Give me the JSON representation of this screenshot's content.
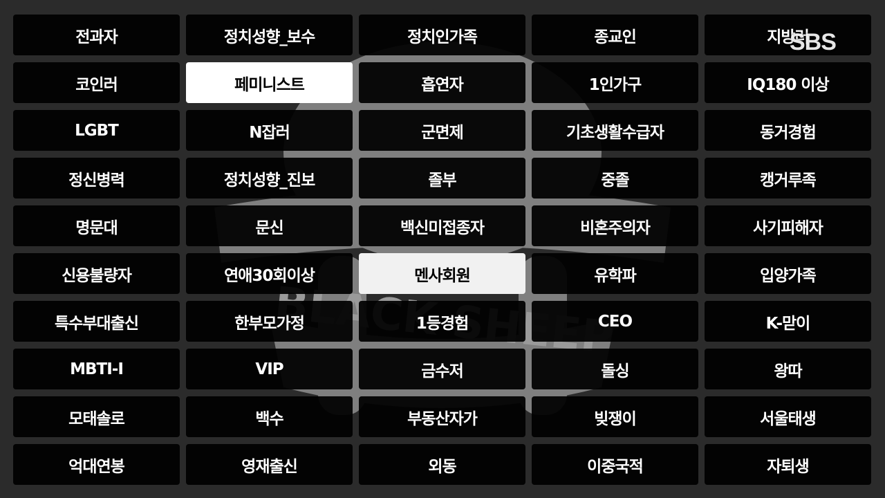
{
  "watermark": {
    "text": "BLACK SHEEP"
  },
  "broadcaster_logo": "SBS",
  "grid": {
    "items": [
      {
        "label": "전과자",
        "selected": false
      },
      {
        "label": "정치성향_보수",
        "selected": false
      },
      {
        "label": "정치인가족",
        "selected": false
      },
      {
        "label": "종교인",
        "selected": false
      },
      {
        "label": "지방러",
        "selected": false
      },
      {
        "label": "코인러",
        "selected": false
      },
      {
        "label": "페미니스트",
        "selected": true
      },
      {
        "label": "흡연자",
        "selected": false
      },
      {
        "label": "1인가구",
        "selected": false
      },
      {
        "label": "IQ180 이상",
        "selected": false
      },
      {
        "label": "LGBT",
        "selected": false
      },
      {
        "label": "N잡러",
        "selected": false
      },
      {
        "label": "군면제",
        "selected": false
      },
      {
        "label": "기초생활수급자",
        "selected": false
      },
      {
        "label": "동거경험",
        "selected": false
      },
      {
        "label": "정신병력",
        "selected": false
      },
      {
        "label": "정치성향_진보",
        "selected": false
      },
      {
        "label": "졸부",
        "selected": false
      },
      {
        "label": "중졸",
        "selected": false
      },
      {
        "label": "캥거루족",
        "selected": false
      },
      {
        "label": "명문대",
        "selected": false
      },
      {
        "label": "문신",
        "selected": false
      },
      {
        "label": "백신미접종자",
        "selected": false
      },
      {
        "label": "비혼주의자",
        "selected": false
      },
      {
        "label": "사기피해자",
        "selected": false
      },
      {
        "label": "신용불량자",
        "selected": false
      },
      {
        "label": "연애30회이상",
        "selected": false
      },
      {
        "label": "멘사회원",
        "selected": true
      },
      {
        "label": "유학파",
        "selected": false
      },
      {
        "label": "입양가족",
        "selected": false
      },
      {
        "label": "특수부대출신",
        "selected": false
      },
      {
        "label": "한부모가정",
        "selected": false
      },
      {
        "label": "1등경험",
        "selected": false
      },
      {
        "label": "CEO",
        "selected": false
      },
      {
        "label": "K-맏이",
        "selected": false
      },
      {
        "label": "MBTI-I",
        "selected": false
      },
      {
        "label": "VIP",
        "selected": false
      },
      {
        "label": "금수저",
        "selected": false
      },
      {
        "label": "돌싱",
        "selected": false
      },
      {
        "label": "왕따",
        "selected": false
      },
      {
        "label": "모태솔로",
        "selected": false
      },
      {
        "label": "백수",
        "selected": false
      },
      {
        "label": "부동산자가",
        "selected": false
      },
      {
        "label": "빚쟁이",
        "selected": false
      },
      {
        "label": "서울태생",
        "selected": false
      },
      {
        "label": "억대연봉",
        "selected": false
      },
      {
        "label": "영재출신",
        "selected": false
      },
      {
        "label": "외동",
        "selected": false
      },
      {
        "label": "이중국적",
        "selected": false
      },
      {
        "label": "자퇴생",
        "selected": false
      }
    ]
  }
}
